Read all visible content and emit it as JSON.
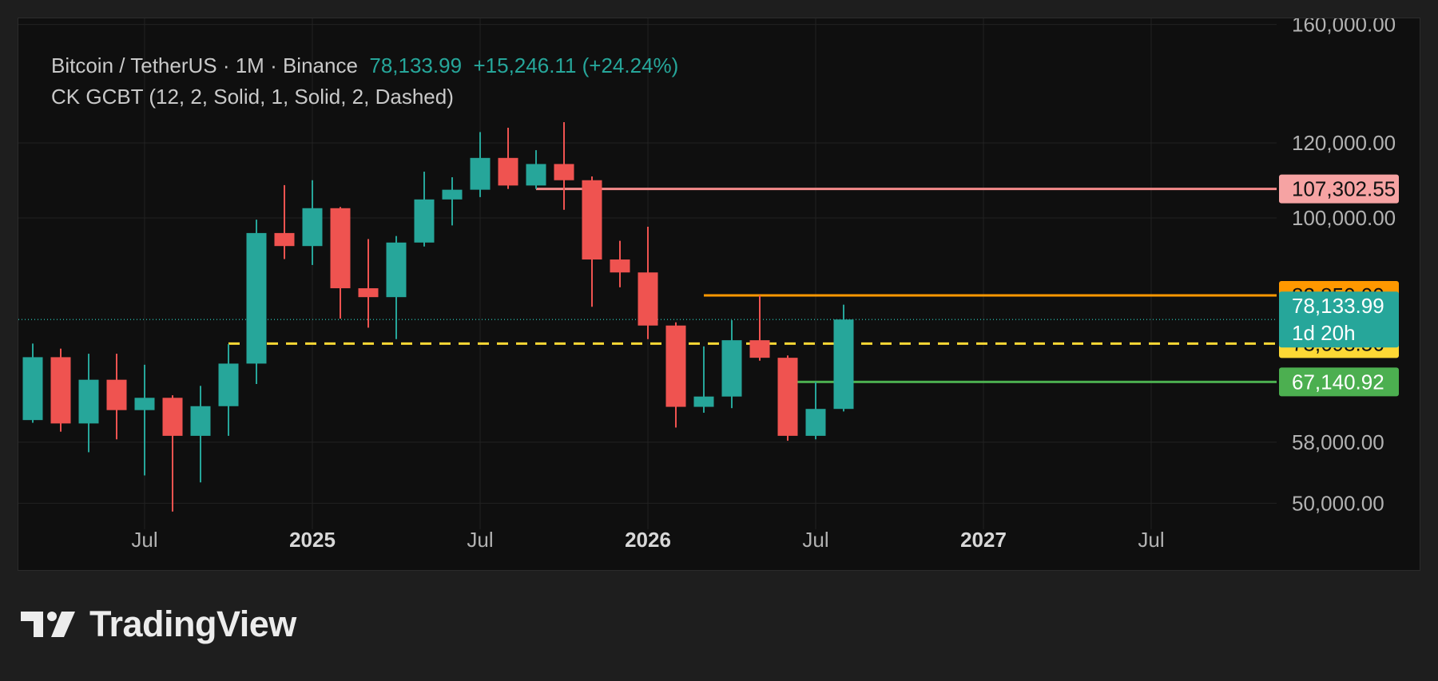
{
  "header": {
    "symbol": "Bitcoin / TetherUS · 1M · Binance",
    "last_price": "78,133.99",
    "change": "+15,246.11 (+24.24%)",
    "indicator": "CK GCBT (12, 2, Solid, 1, Solid, 2, Dashed)"
  },
  "brand": {
    "name": "TradingView",
    "logo_icon": "tradingview-logo-icon"
  },
  "colors": {
    "up": "#26a69a",
    "down": "#ef5350",
    "background": "#0f0f0f",
    "grid": "#222222",
    "axis_text": "#b2b2b2",
    "resistance": "#f48a8a",
    "orange": "#ff9800",
    "yellow": "#fdd835",
    "green": "#4caf50"
  },
  "chart_data": {
    "type": "candlestick",
    "interval": "1M",
    "y_scale": "log",
    "ylim": [
      45000,
      170000
    ],
    "y_ticks": [
      {
        "value": 160000,
        "label": "160,000.00"
      },
      {
        "value": 120000,
        "label": "120,000.00"
      },
      {
        "value": 100000,
        "label": "100,000.00"
      },
      {
        "value": 58000,
        "label": "58,000.00"
      },
      {
        "value": 50000,
        "label": "50,000.00"
      }
    ],
    "x_ticks": [
      {
        "date": "2024-07",
        "label": "Jul",
        "bold": false
      },
      {
        "date": "2025-01",
        "label": "2025",
        "bold": true
      },
      {
        "date": "2025-07",
        "label": "Jul",
        "bold": false
      },
      {
        "date": "2026-01",
        "label": "2026",
        "bold": true
      },
      {
        "date": "2026-07",
        "label": "Jul",
        "bold": false
      },
      {
        "date": "2027-01",
        "label": "2027",
        "bold": true
      },
      {
        "date": "2027-07",
        "label": "Jul",
        "bold": false
      }
    ],
    "grid": true,
    "candles": [
      {
        "date": "2024-03",
        "o": 61200,
        "h": 73700,
        "l": 60800,
        "c": 71300
      },
      {
        "date": "2024-04",
        "o": 71300,
        "h": 72800,
        "l": 59500,
        "c": 60700
      },
      {
        "date": "2024-05",
        "o": 60700,
        "h": 71900,
        "l": 56600,
        "c": 67500
      },
      {
        "date": "2024-06",
        "o": 67500,
        "h": 71900,
        "l": 58400,
        "c": 62700
      },
      {
        "date": "2024-07",
        "o": 62700,
        "h": 70000,
        "l": 53500,
        "c": 64600
      },
      {
        "date": "2024-08",
        "o": 64600,
        "h": 65000,
        "l": 49000,
        "c": 58900
      },
      {
        "date": "2024-09",
        "o": 58900,
        "h": 66500,
        "l": 52600,
        "c": 63300
      },
      {
        "date": "2024-10",
        "o": 63300,
        "h": 73600,
        "l": 58900,
        "c": 70200
      },
      {
        "date": "2024-11",
        "o": 70200,
        "h": 99600,
        "l": 66800,
        "c": 96400
      },
      {
        "date": "2024-12",
        "o": 96400,
        "h": 108300,
        "l": 90500,
        "c": 93400
      },
      {
        "date": "2025-01",
        "o": 93400,
        "h": 109600,
        "l": 89200,
        "c": 102400
      },
      {
        "date": "2025-02",
        "o": 102400,
        "h": 102700,
        "l": 78300,
        "c": 84300
      },
      {
        "date": "2025-03",
        "o": 84300,
        "h": 95000,
        "l": 76600,
        "c": 82500
      },
      {
        "date": "2025-04",
        "o": 82500,
        "h": 95700,
        "l": 74500,
        "c": 94200
      },
      {
        "date": "2025-05",
        "o": 94200,
        "h": 111900,
        "l": 93300,
        "c": 104600
      },
      {
        "date": "2025-06",
        "o": 104600,
        "h": 110400,
        "l": 98200,
        "c": 107100
      },
      {
        "date": "2025-07",
        "o": 107100,
        "h": 123200,
        "l": 105200,
        "c": 115700
      },
      {
        "date": "2025-08",
        "o": 115700,
        "h": 124500,
        "l": 107300,
        "c": 108200
      },
      {
        "date": "2025-09",
        "o": 108200,
        "h": 117900,
        "l": 107300,
        "c": 114000
      },
      {
        "date": "2025-10",
        "o": 114000,
        "h": 126200,
        "l": 102000,
        "c": 109600
      },
      {
        "date": "2025-11",
        "o": 109600,
        "h": 110600,
        "l": 80600,
        "c": 90400
      },
      {
        "date": "2025-12",
        "o": 90400,
        "h": 94600,
        "l": 84500,
        "c": 87600
      },
      {
        "date": "2026-01",
        "o": 87600,
        "h": 97900,
        "l": 74500,
        "c": 77000
      },
      {
        "date": "2026-02",
        "o": 77000,
        "h": 77600,
        "l": 60100,
        "c": 63200
      },
      {
        "date": "2026-03",
        "o": 63200,
        "h": 73200,
        "l": 62300,
        "c": 64800
      },
      {
        "date": "2026-04",
        "o": 64800,
        "h": 78000,
        "l": 63000,
        "c": 74300
      },
      {
        "date": "2026-05",
        "o": 74300,
        "h": 82850,
        "l": 70700,
        "c": 71200
      },
      {
        "date": "2026-06",
        "o": 71200,
        "h": 71600,
        "l": 58200,
        "c": 58900
      },
      {
        "date": "2026-07",
        "o": 58900,
        "h": 67140,
        "l": 58400,
        "c": 62880
      },
      {
        "date": "2026-08",
        "o": 62880,
        "h": 81000,
        "l": 62500,
        "c": 78134
      }
    ],
    "levels": [
      {
        "value": 107302.55,
        "label": "107,302.55",
        "color": "#f48a8a",
        "label_bg": "#f6a3a3",
        "label_fg": "#111111",
        "style": "solid",
        "from": "2025-09"
      },
      {
        "value": 82850,
        "label": "82,850.00",
        "color": "#ff9800",
        "label_bg": "#ff9800",
        "label_fg": "#111111",
        "style": "solid",
        "from": "2026-03"
      },
      {
        "value": 73698.56,
        "label": "73,698.56",
        "color": "#fdd835",
        "label_bg": "#fdd835",
        "label_fg": "#111111",
        "style": "dashed",
        "from": "2024-10"
      },
      {
        "value": 67140.92,
        "label": "67,140.92",
        "color": "#4caf50",
        "label_bg": "#4caf50",
        "label_fg": "#ffffff",
        "style": "solid",
        "from": "2026-06"
      }
    ],
    "last_price_tag": {
      "value": 78133.99,
      "label": "78,133.99",
      "countdown": "1d 20h",
      "color": "#26a69a"
    }
  }
}
